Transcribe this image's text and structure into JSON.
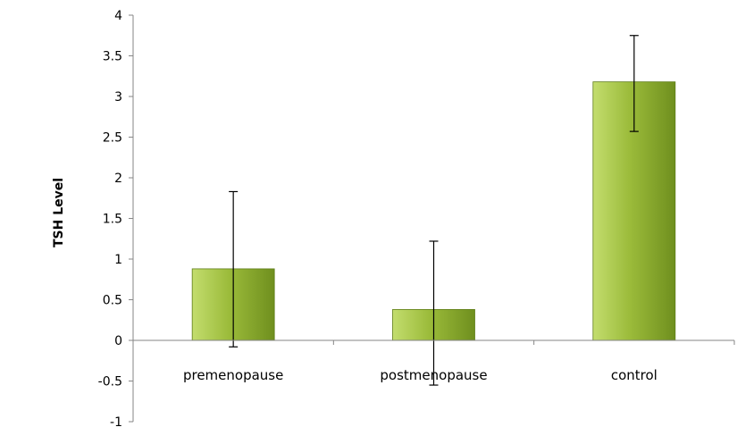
{
  "chart_data": {
    "type": "bar",
    "categories": [
      "premenopause",
      "postmenopause",
      "control"
    ],
    "values": [
      0.88,
      0.38,
      3.18
    ],
    "error_bars": [
      {
        "low": -0.08,
        "high": 1.83
      },
      {
        "low": -0.55,
        "high": 1.22
      },
      {
        "low": 2.57,
        "high": 3.75
      }
    ],
    "title": "",
    "xlabel": "",
    "ylabel": "TSH Level",
    "ylim": [
      -1,
      4
    ],
    "yticks": [
      "4",
      "3.5",
      "3",
      "2.5",
      "2",
      "1.5",
      "1",
      "0.5",
      "0",
      "-0.5",
      "-1"
    ],
    "grid": false,
    "legend": "none",
    "colors": {
      "bar_light": "#c3dd6e",
      "bar_mid": "#9bbb3a",
      "bar_dark": "#6f8f1e",
      "bar_stroke": "#5e7d18",
      "axis": "#868686",
      "error_bar": "#000000"
    }
  }
}
